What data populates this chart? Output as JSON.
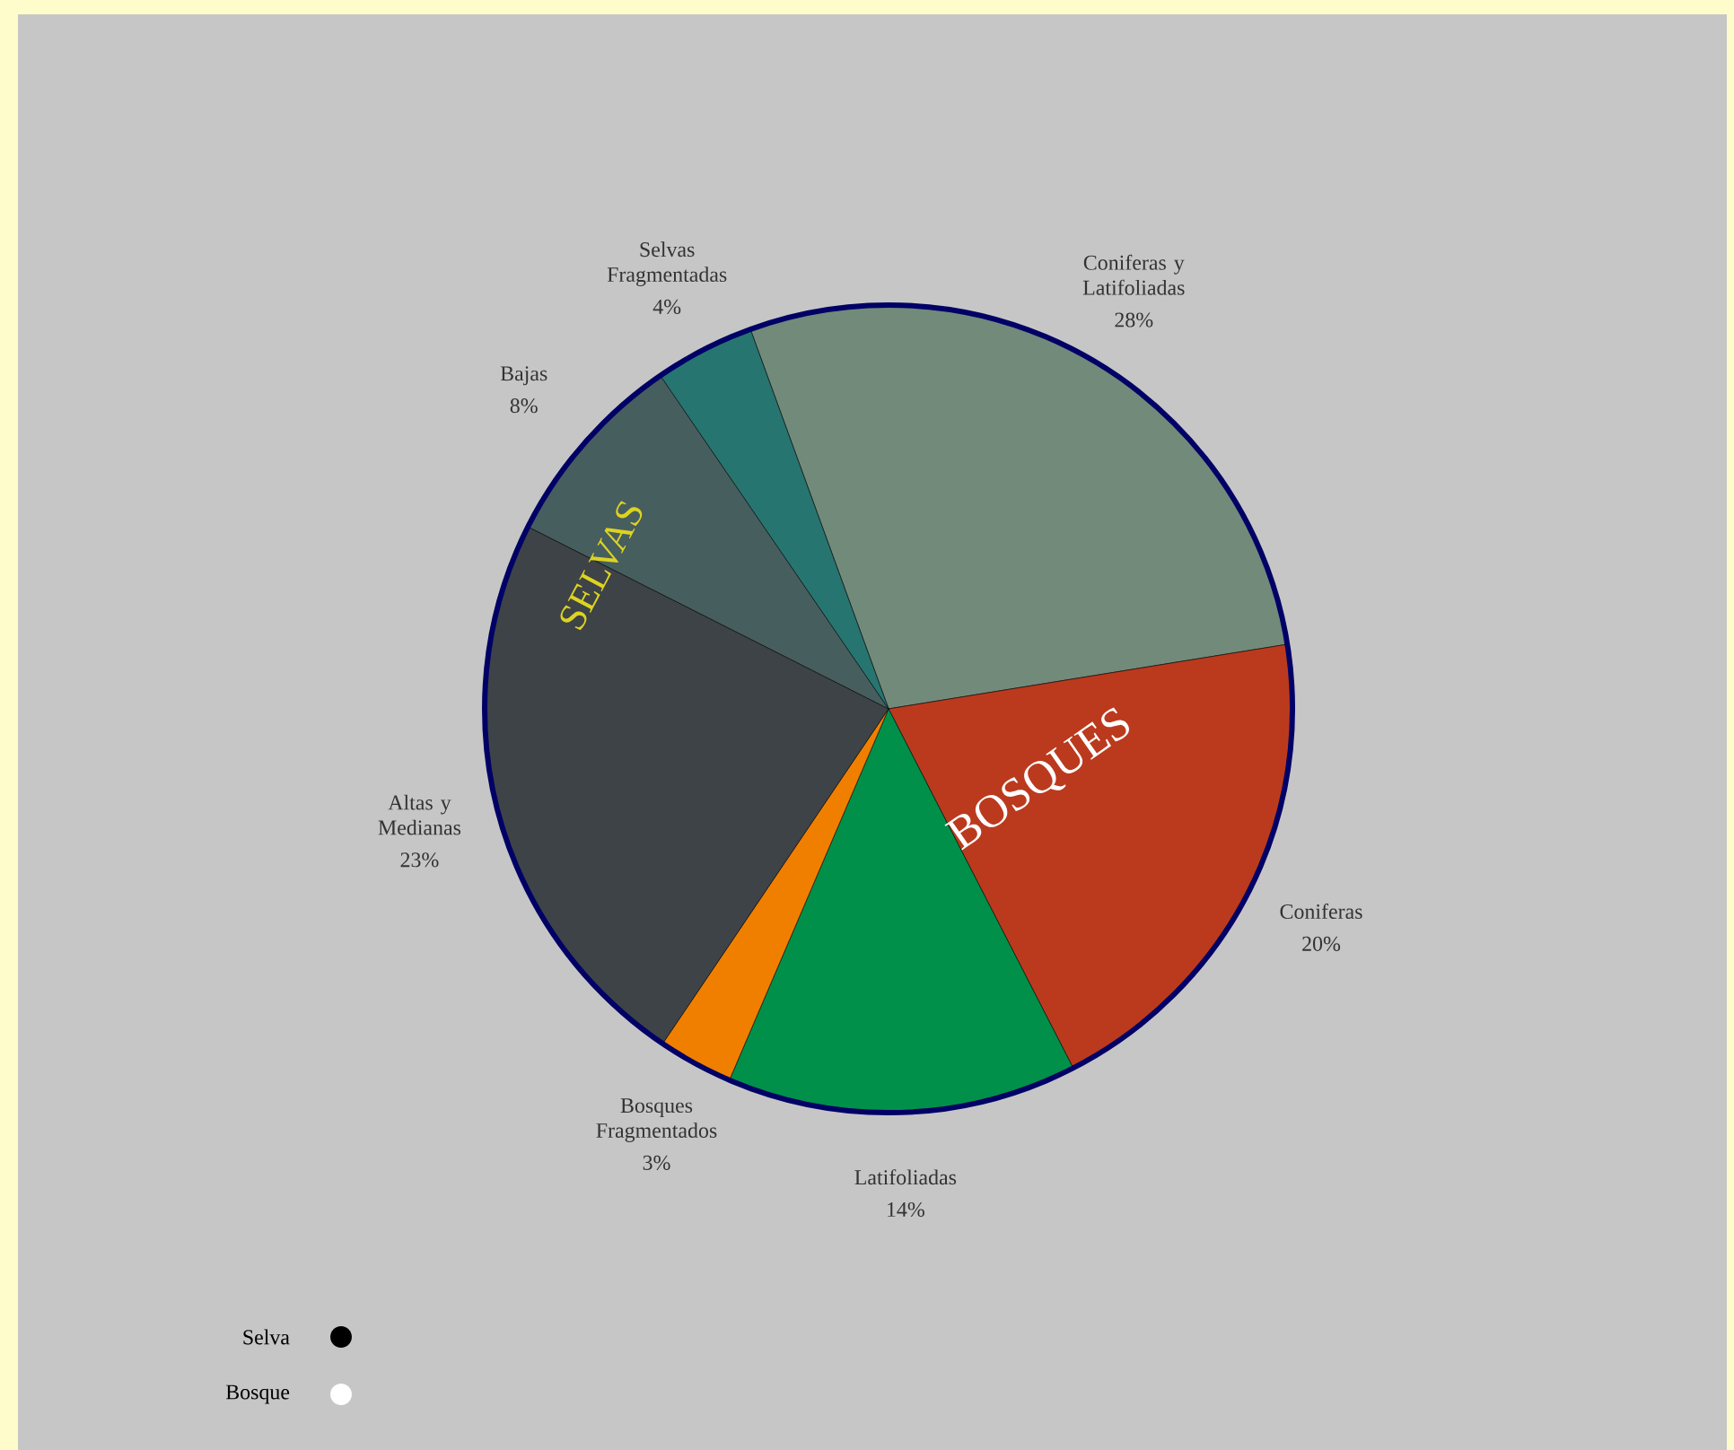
{
  "chart_data": {
    "type": "pie",
    "categories": [
      "Coniferas y Latifoliadas",
      "Coniferas",
      "Latifoliadas",
      "Bosques Fragmentados",
      "Altas y Medianas",
      "Bajas",
      "Selvas Fragmentadas"
    ],
    "values": [
      28,
      20,
      14,
      3,
      23,
      8,
      4
    ],
    "value_labels": [
      "28%",
      "20%",
      "14%",
      "3%",
      "23%",
      "8%",
      "4%"
    ],
    "colors": [
      "#728a7a",
      "#bb3a1e",
      "#00904a",
      "#f07f00",
      "#3d4347",
      "#475e5e",
      "#277570"
    ],
    "annotations": [
      "SELVAS",
      "BOSQUES",
      "Selva",
      "Bosque"
    ]
  }
}
